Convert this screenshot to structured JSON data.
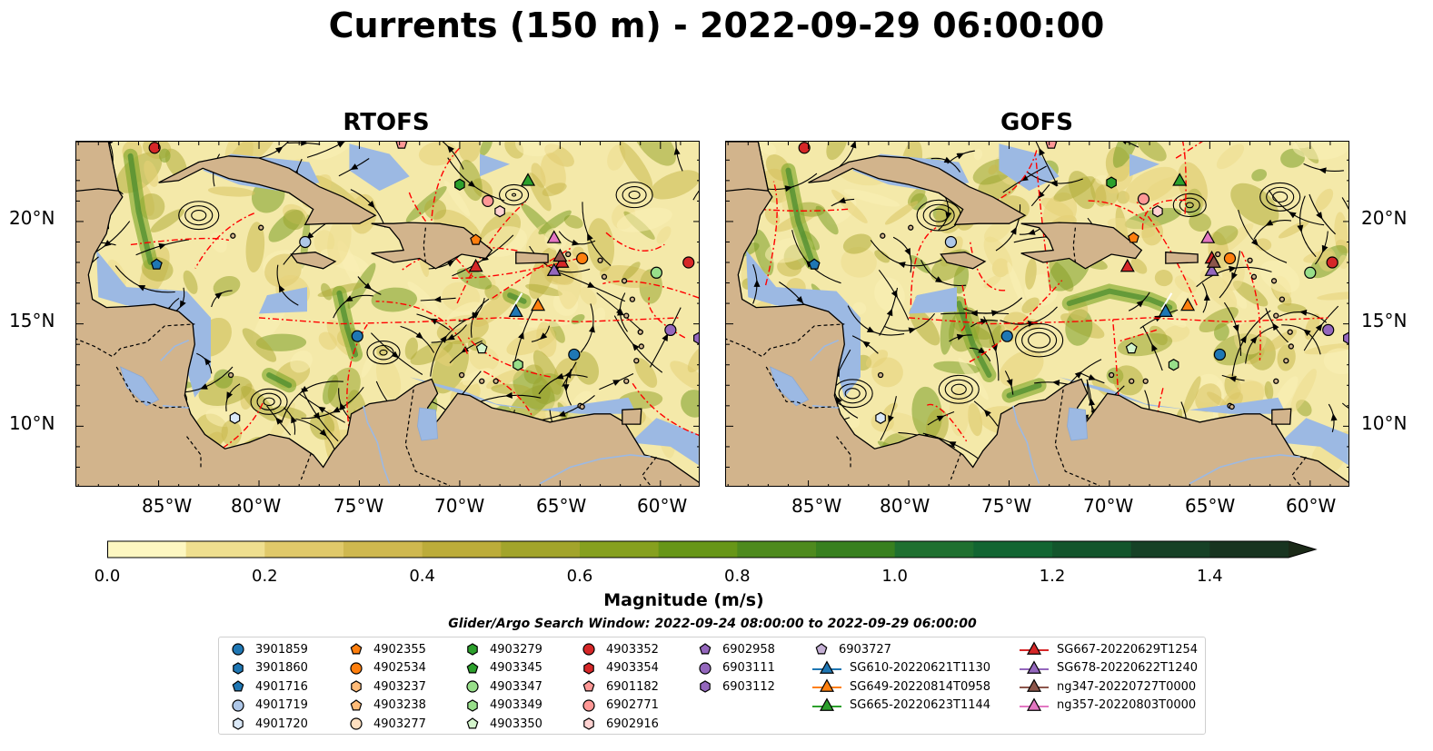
{
  "title": "Currents (150 m) - 2022-09-29 06:00:00",
  "panels": [
    {
      "title": "RTOFS"
    },
    {
      "title": "GOFS"
    }
  ],
  "axes": {
    "x_ticks": [
      "85°W",
      "80°W",
      "75°W",
      "70°W",
      "65°W",
      "60°W"
    ],
    "y_ticks": [
      "20°N",
      "15°N",
      "10°N"
    ]
  },
  "colorbar": {
    "label": "Magnitude (m/s)",
    "ticks": [
      "0.0",
      "0.2",
      "0.4",
      "0.6",
      "0.8",
      "1.0",
      "1.2",
      "1.4"
    ],
    "range": [
      0,
      1.5
    ],
    "extend": "max",
    "colors": [
      "#fdf7c1",
      "#efdf8f",
      "#e0c96a",
      "#cfb84f",
      "#bcac3a",
      "#a2a42b",
      "#86a01f",
      "#679618",
      "#4e8a1e",
      "#38801f",
      "#1f7030",
      "#126532",
      "#13552c",
      "#164126",
      "#183420",
      "#1b2a18"
    ]
  },
  "subtitle": "Glider/Argo Search Window: 2022-09-24 08:00:00 to 2022-09-29 06:00:00",
  "legend": [
    {
      "label": "3901859",
      "marker": "circle",
      "color": "#1f77b4"
    },
    {
      "label": "3901860",
      "marker": "hexagon",
      "color": "#1f77b4"
    },
    {
      "label": "4901716",
      "marker": "pentagon",
      "color": "#1f77b4"
    },
    {
      "label": "4901719",
      "marker": "circle",
      "color": "#aec7e8"
    },
    {
      "label": "4901720",
      "marker": "hexagon",
      "color": "#dbe9f8"
    },
    {
      "label": "4902355",
      "marker": "pentagon",
      "color": "#ff7f0e"
    },
    {
      "label": "4902534",
      "marker": "circle",
      "color": "#ff7f0e"
    },
    {
      "label": "4903237",
      "marker": "hexagon",
      "color": "#ffbb78"
    },
    {
      "label": "4903238",
      "marker": "pentagon",
      "color": "#ffbb78"
    },
    {
      "label": "4903277",
      "marker": "circle",
      "color": "#ffe0c0"
    },
    {
      "label": "4903279",
      "marker": "hexagon",
      "color": "#2ca02c"
    },
    {
      "label": "4903345",
      "marker": "pentagon",
      "color": "#2ca02c"
    },
    {
      "label": "4903347",
      "marker": "circle",
      "color": "#98df8a"
    },
    {
      "label": "4903349",
      "marker": "hexagon",
      "color": "#98df8a"
    },
    {
      "label": "4903350",
      "marker": "pentagon",
      "color": "#d4f5cc"
    },
    {
      "label": "4903352",
      "marker": "circle",
      "color": "#d62728"
    },
    {
      "label": "4903354",
      "marker": "hexagon",
      "color": "#d62728"
    },
    {
      "label": "6901182",
      "marker": "pentagon",
      "color": "#ff9896"
    },
    {
      "label": "6902771",
      "marker": "circle",
      "color": "#ff9896"
    },
    {
      "label": "6902916",
      "marker": "hexagon",
      "color": "#ffd2d1"
    },
    {
      "label": "6902958",
      "marker": "pentagon",
      "color": "#9467bd"
    },
    {
      "label": "6903111",
      "marker": "circle",
      "color": "#9467bd"
    },
    {
      "label": "6903112",
      "marker": "hexagon",
      "color": "#9467bd"
    },
    {
      "label": "6903727",
      "marker": "pentagon",
      "color": "#c5b0d5"
    },
    {
      "label": "SG610-20220621T1130",
      "marker": "triangle-line",
      "color": "#1f77b4"
    },
    {
      "label": "SG649-20220814T0958",
      "marker": "triangle-line",
      "color": "#ff7f0e"
    },
    {
      "label": "SG665-20220623T1144",
      "marker": "triangle-line",
      "color": "#2ca02c"
    },
    {
      "label": "SG667-20220629T1254",
      "marker": "triangle-line",
      "color": "#d62728"
    },
    {
      "label": "SG678-20220622T1240",
      "marker": "triangle-line",
      "color": "#9467bd"
    },
    {
      "label": "ng347-20220727T0000",
      "marker": "triangle-line",
      "color": "#8c564b"
    },
    {
      "label": "ng357-20220803T0000",
      "marker": "triangle-line",
      "color": "#e377c2"
    }
  ]
}
